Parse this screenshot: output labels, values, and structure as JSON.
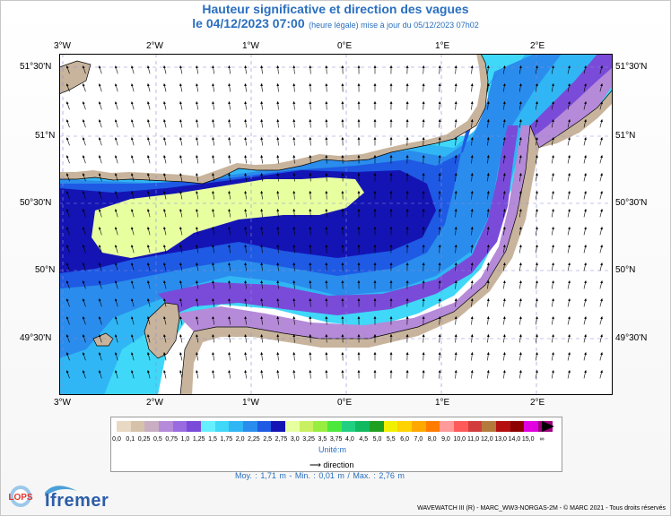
{
  "title": {
    "line1": "Hauteur significative et direction des vagues",
    "date": "le 04/12/2023 07:00",
    "subtitle": "(heure légale) mise à jour du 05/12/2023 07h02"
  },
  "map": {
    "lon_ticks": [
      "3°W",
      "2°W",
      "1°W",
      "0°E",
      "1°E",
      "2°E"
    ],
    "lat_ticks_left": [
      "51°30'N",
      "51°N",
      "50°30'N",
      "50°N",
      "49°30'N"
    ],
    "lat_ticks_right": [
      "51°30'N",
      "51°N",
      "50°30'N",
      "50°N",
      "49°30'N"
    ],
    "extent": {
      "lon_min": -3.05,
      "lon_max": 2.78,
      "lat_min": 49.09,
      "lat_max": 51.62
    },
    "colors": {
      "land": "#c8b49c",
      "grid": "#8a8ad8"
    }
  },
  "legend": {
    "levels": [
      "0,0",
      "0,1",
      "0,25",
      "0,5",
      "0,75",
      "1,0",
      "1,25",
      "1,5",
      "1,75",
      "2,0",
      "2,25",
      "2,5",
      "2,75",
      "3,0",
      "3,25",
      "3,5",
      "3,75",
      "4,0",
      "4,5",
      "5,0",
      "5,5",
      "6,0",
      "7,0",
      "8,0",
      "9,0",
      "10,0",
      "11,0",
      "12,0",
      "13,0",
      "14,0",
      "15,0",
      "∞"
    ],
    "colors": [
      "#e8d8c4",
      "#d6c2ab",
      "#c9aec3",
      "#b58ad8",
      "#9a6be0",
      "#7a4bd8",
      "#66f0ff",
      "#3fd8f8",
      "#30b6f4",
      "#2a8cec",
      "#1e5ae4",
      "#1414b4",
      "#e8ffa0",
      "#c8f060",
      "#98ee40",
      "#4ce83c",
      "#20d080",
      "#10b860",
      "#20a020",
      "#f0f000",
      "#ffd200",
      "#ffa800",
      "#ff7c00",
      "#ff9a9a",
      "#ff5a5a",
      "#d23c3c",
      "#b47a3c",
      "#b41010",
      "#8c0000",
      "#e000e0",
      "#a00080"
    ],
    "unit": "Unité:m",
    "direction_label": "direction",
    "stats": "Moy. : 1,71 m   -   Min. : 0,01 m / Max. : 2,76 m"
  },
  "footer": {
    "credit": "WAVEWATCH III (R) - MARC_WW3-NORGAS-2M - © MARC 2021 - Tous droits réservés",
    "logo_lops": "LOPS",
    "logo_ifremer": "Ifremer"
  }
}
